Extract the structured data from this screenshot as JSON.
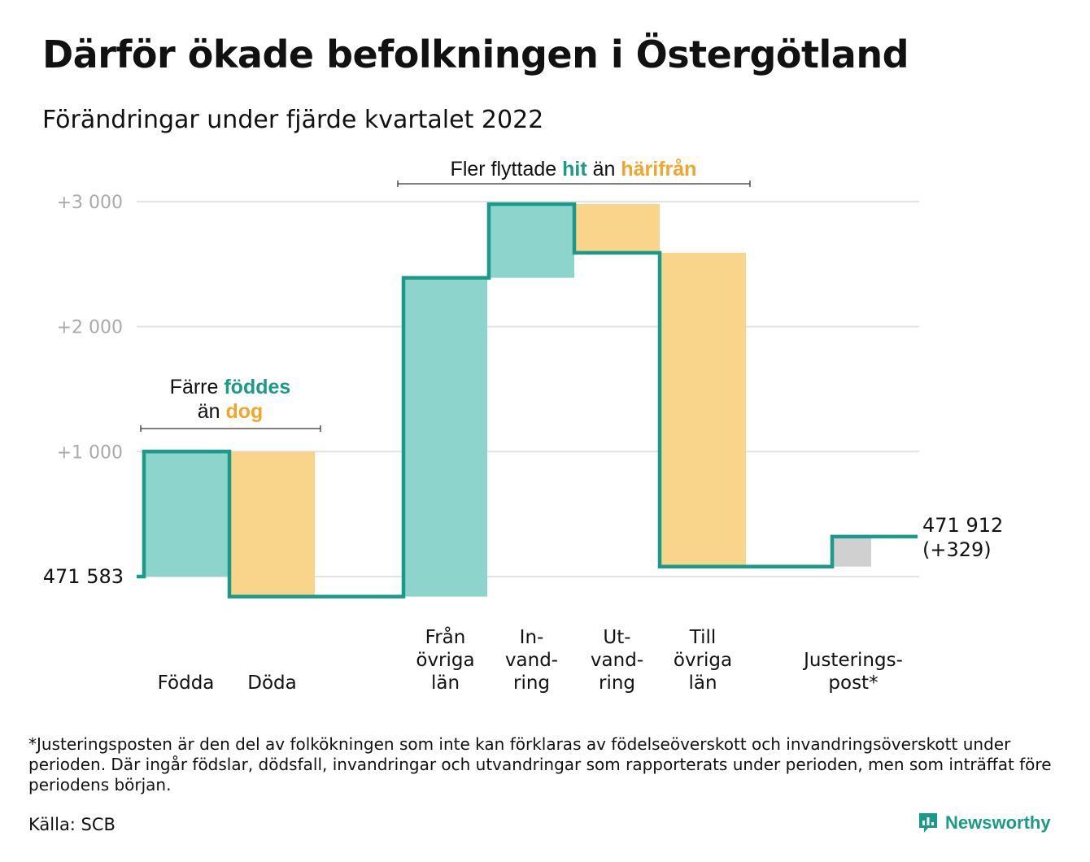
{
  "title": "Därför ökade befolkningen i Östergötland",
  "subtitle": "Förändringar under fjärde kvartalet 2022",
  "footnote": "*Justeringsposten är den del av folkökningen som inte kan förklaras av födelseöverskott och invandringsöverskott under perioden. Där ingår födslar, dödsfall, invandringar och utvandringar som rapporterats under perioden, men som inträffat före periodens början.",
  "source": "Källa: SCB",
  "brand": "Newsworthy",
  "colors": {
    "teal_line": "#1a9a88",
    "teal_fill": "#8dd5cc",
    "orange_fill": "#f9d48b",
    "orange_text": "#f2a52b",
    "gray_fill": "#d0d0d0",
    "grid": "#e3e3e3",
    "tick_text": "#aaaaaa"
  },
  "chart_data": {
    "type": "waterfall",
    "start_label": "471 583",
    "end_label": [
      "471 912",
      "(+329)"
    ],
    "ylim": [
      -200,
      3100
    ],
    "ticks": [
      {
        "value": 1000,
        "label": "+1 000"
      },
      {
        "value": 2000,
        "label": "+2 000"
      },
      {
        "value": 3000,
        "label": "+3 000"
      }
    ],
    "steps": [
      {
        "label": [
          "Födda"
        ],
        "change": 1000,
        "kind": "in"
      },
      {
        "label": [
          "Döda"
        ],
        "change": -1160,
        "kind": "out"
      },
      {
        "label": [
          "Från",
          "övriga",
          "län"
        ],
        "change": 2550,
        "kind": "in"
      },
      {
        "label": [
          "In-",
          "vand-",
          "ring"
        ],
        "change": 590,
        "kind": "in"
      },
      {
        "label": [
          "Ut-",
          "vand-",
          "ring"
        ],
        "change": -390,
        "kind": "out"
      },
      {
        "label": [
          "Till",
          "övriga",
          "län"
        ],
        "change": -2510,
        "kind": "out"
      },
      {
        "label": [
          "Justerings-",
          "post*"
        ],
        "change": 240,
        "kind": "adjust"
      }
    ],
    "annotations": [
      {
        "parts": [
          [
            "Färre ",
            "plain"
          ],
          [
            "föddes",
            "teal"
          ]
        ],
        "parts2": [
          [
            "än ",
            "plain"
          ],
          [
            "dog",
            "orange"
          ]
        ]
      },
      {
        "parts": [
          [
            "Fler flyttade ",
            "plain"
          ],
          [
            "hit",
            "teal"
          ],
          [
            " än ",
            "plain"
          ],
          [
            "härifrån",
            "orange"
          ]
        ]
      }
    ]
  }
}
